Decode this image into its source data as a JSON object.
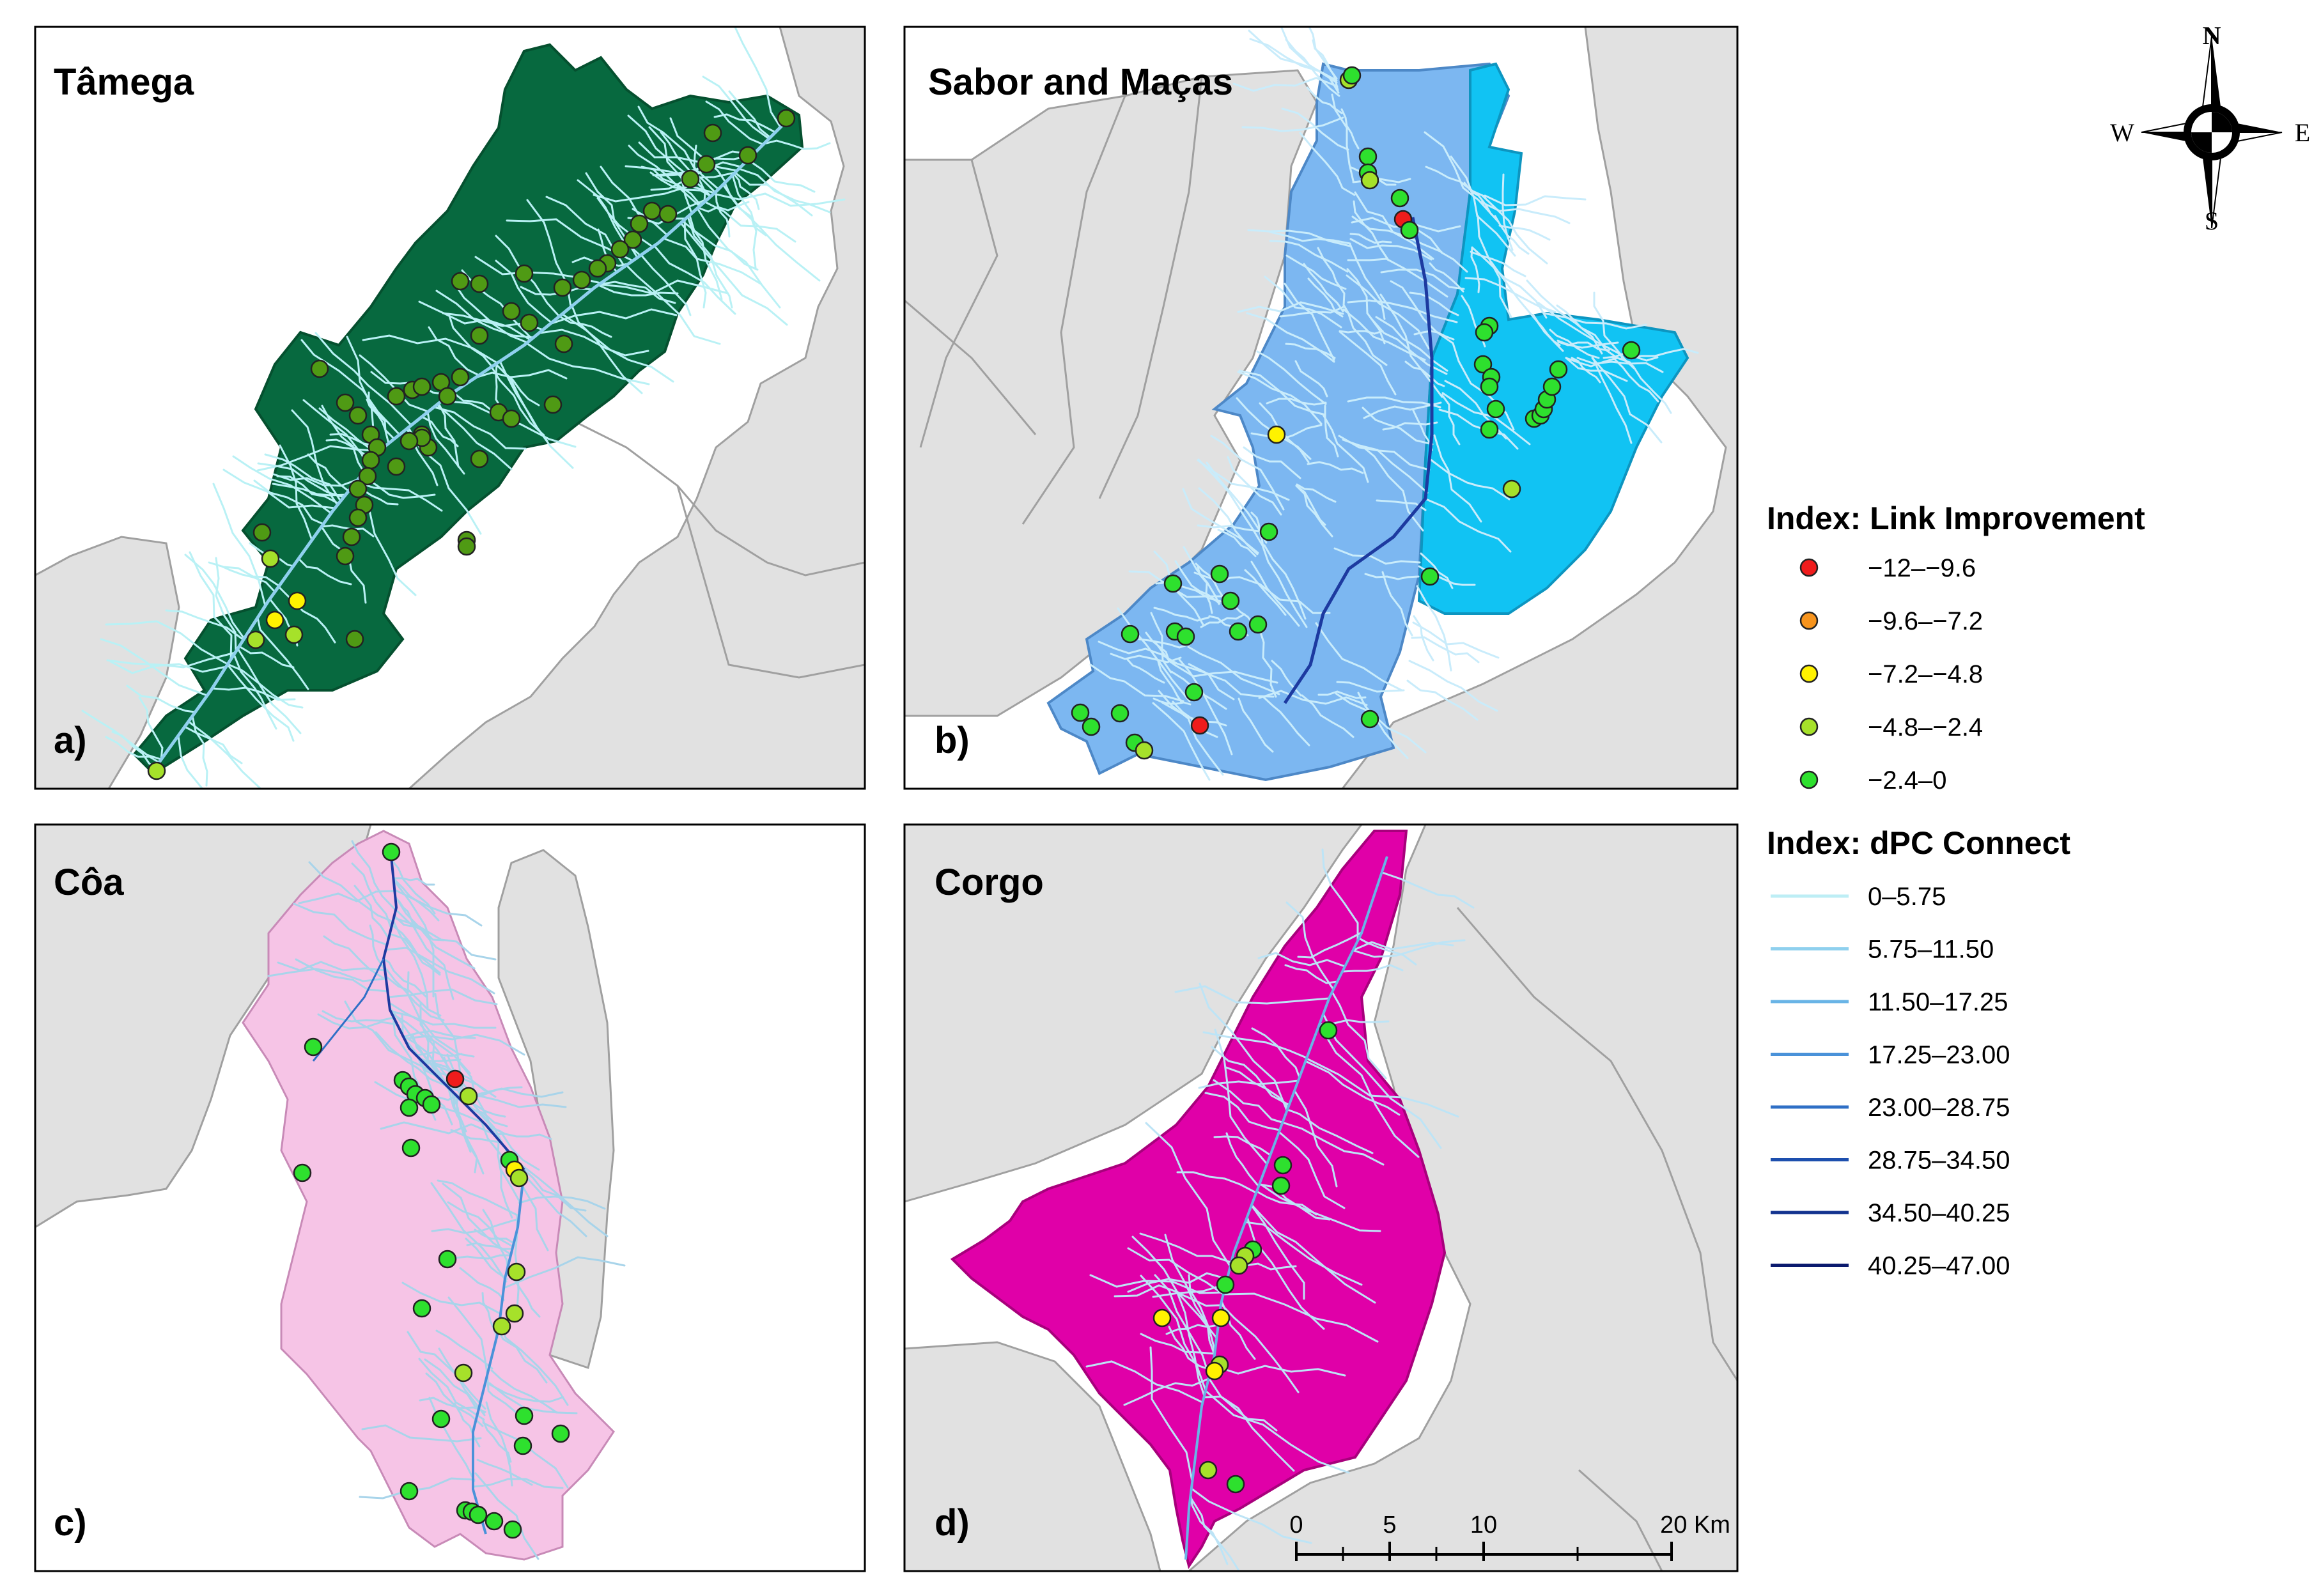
{
  "panels": [
    {
      "id": "a",
      "title": "Tâmega",
      "letter": "a)",
      "basin_color": "#07693f",
      "stream_color": "#b9f1f5"
    },
    {
      "id": "b",
      "title": "Sabor and Maças",
      "letter": "b)",
      "basin_color": "#7cb7f1",
      "basin_color2": "#11c3f3",
      "stream_color": "#c9ecfb"
    },
    {
      "id": "c",
      "title": "Côa",
      "letter": "c)",
      "basin_color": "#f6c4e6",
      "stream_color": "#a8d4ea"
    },
    {
      "id": "d",
      "title": "Corgo",
      "letter": "d)",
      "basin_color": "#e000a8",
      "stream_color": "#bde4f6"
    }
  ],
  "legend_points": {
    "title": "Index: Link Improvement",
    "items": [
      {
        "label": "−12–−9.6",
        "color": "#ef1c1c"
      },
      {
        "label": "−9.6–−7.2",
        "color": "#f7941d"
      },
      {
        "label": "−7.2–−4.8",
        "color": "#fff200"
      },
      {
        "label": "−4.8–−2.4",
        "color": "#a6e12a"
      },
      {
        "label": "−2.4–0",
        "color": "#2ee02e"
      }
    ]
  },
  "legend_lines": {
    "title": "Index: dPC Connect",
    "items": [
      {
        "label": "0–5.75",
        "color": "#bdeef5"
      },
      {
        "label": "5.75–11.50",
        "color": "#8fd0ee"
      },
      {
        "label": "11.50–17.25",
        "color": "#69b4e6"
      },
      {
        "label": "17.25–23.00",
        "color": "#4a92d9"
      },
      {
        "label": "23.00–28.75",
        "color": "#2f6fc6"
      },
      {
        "label": "28.75–34.50",
        "color": "#1d4fae"
      },
      {
        "label": "34.50–40.25",
        "color": "#13338f"
      },
      {
        "label": "40.25–47.00",
        "color": "#0b1a6e"
      }
    ]
  },
  "compass": {
    "n": "N",
    "s": "S",
    "e": "E",
    "w": "W"
  },
  "scale_bar": {
    "ticks": [
      "0",
      "5",
      "10",
      "20 Km"
    ]
  },
  "colors": {
    "neighbor_fill": "#e1e1e1",
    "neighbor_border": "#a0a0a0",
    "point_outline": "#222222",
    "tamega_point": "#4f9a14"
  }
}
